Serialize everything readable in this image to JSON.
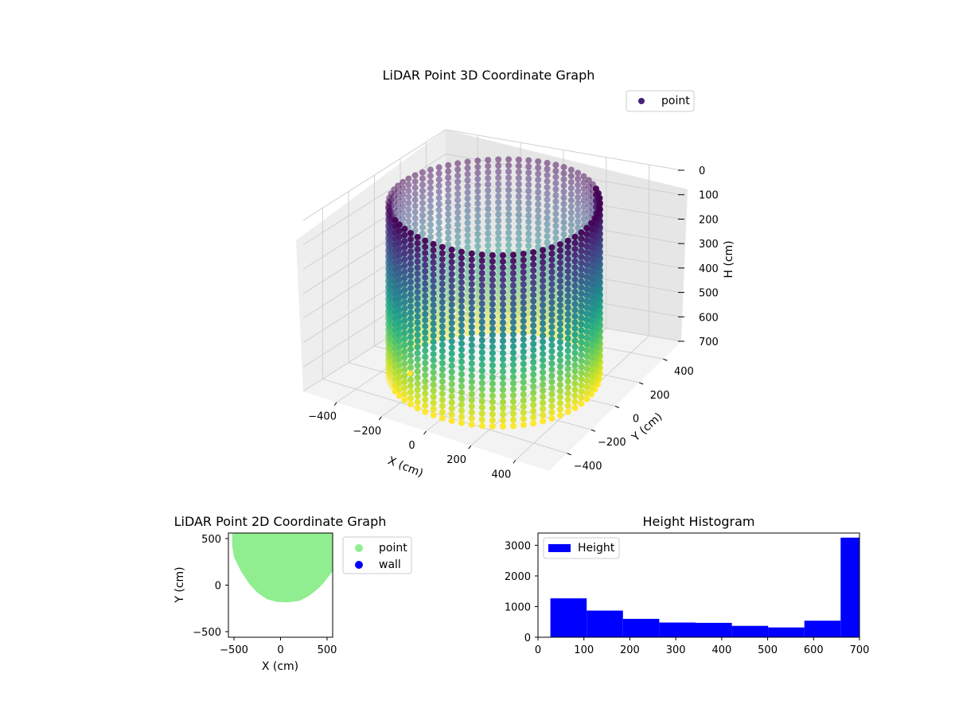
{
  "chart_data": [
    {
      "type": "scatter3d",
      "title": "LiDAR Point 3D Coordinate Graph",
      "xlabel": "X (cm)",
      "ylabel": "Y (cm)",
      "zlabel": "H (cm)",
      "xlim": [
        -550,
        550
      ],
      "ylim": [
        -550,
        550
      ],
      "zlim": [
        700,
        0
      ],
      "xticks": [
        -400,
        -200,
        0,
        200,
        400
      ],
      "yticks": [
        -400,
        -200,
        0,
        200,
        400
      ],
      "zticks": [
        0,
        100,
        200,
        300,
        400,
        500,
        600,
        700
      ],
      "legend": [
        "point"
      ],
      "legend_position": "upper right",
      "colormap": "viridis",
      "description_points": "cylindrical wall of points, center about (0, 0), radius about 420 cm, heights 0-700 cm; color by height",
      "series": [
        {
          "name": "point",
          "color": "#46237a"
        }
      ]
    },
    {
      "type": "scatter",
      "title": "LiDAR Point 2D Coordinate Graph",
      "xlabel": "X (cm)",
      "ylabel": "Y (cm)",
      "xlim": [
        -560,
        560
      ],
      "ylim": [
        -560,
        560
      ],
      "xticks": [
        -500,
        0,
        500
      ],
      "yticks": [
        -500,
        0,
        500
      ],
      "legend_position": "outside upper right",
      "series": [
        {
          "name": "point",
          "color": "#90ee90"
        },
        {
          "name": "wall",
          "color": "#0000ff"
        }
      ],
      "point_region_outline": [
        [
          -520,
          560
        ],
        [
          -520,
          420
        ],
        [
          -500,
          300
        ],
        [
          -420,
          140
        ],
        [
          -340,
          20
        ],
        [
          -250,
          -80
        ],
        [
          -150,
          -150
        ],
        [
          -40,
          -180
        ],
        [
          80,
          -185
        ],
        [
          200,
          -170
        ],
        [
          300,
          -120
        ],
        [
          400,
          -40
        ],
        [
          460,
          20
        ],
        [
          560,
          150
        ],
        [
          560,
          560
        ]
      ]
    },
    {
      "type": "histogram",
      "title": "Height Histogram",
      "xlabel": "",
      "ylabel": "",
      "xlim": [
        0,
        700
      ],
      "ylim": [
        0,
        3400
      ],
      "xticks": [
        0,
        100,
        200,
        300,
        400,
        500,
        600,
        700
      ],
      "yticks": [
        0,
        1000,
        2000,
        3000
      ],
      "legend": [
        "Height"
      ],
      "legend_position": "upper left",
      "color": "#0000ff",
      "bins": [
        {
          "start": 27,
          "end": 106,
          "count": 1270
        },
        {
          "start": 106,
          "end": 185,
          "count": 870
        },
        {
          "start": 185,
          "end": 264,
          "count": 600
        },
        {
          "start": 264,
          "end": 343,
          "count": 480
        },
        {
          "start": 343,
          "end": 422,
          "count": 470
        },
        {
          "start": 422,
          "end": 501,
          "count": 370
        },
        {
          "start": 501,
          "end": 580,
          "count": 320
        },
        {
          "start": 580,
          "end": 659,
          "count": 540
        },
        {
          "start": 659,
          "end": 700,
          "count": 3250
        }
      ]
    }
  ]
}
